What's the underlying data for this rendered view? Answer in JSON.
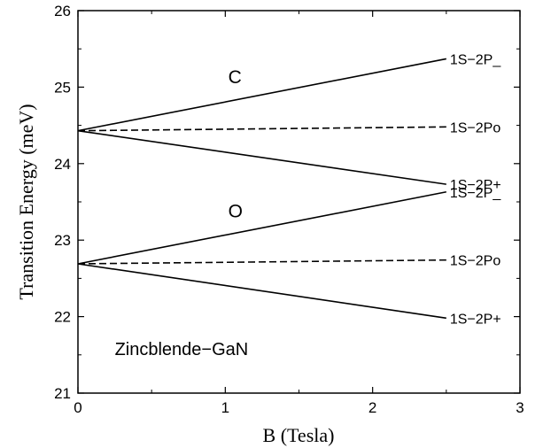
{
  "chart_data": {
    "type": "line",
    "xlabel": "B (Tesla)",
    "ylabel": "Transition Energy (meV)",
    "xlim": [
      0,
      3
    ],
    "ylim": [
      21,
      26
    ],
    "xticks": [
      "0",
      "1",
      "2",
      "3"
    ],
    "yticks": [
      "21",
      "22",
      "23",
      "24",
      "25",
      "26"
    ],
    "grid": false,
    "series": [
      {
        "name": "1S−2P_",
        "group": "C",
        "style": "solid",
        "x": [
          0,
          2.5
        ],
        "y": [
          24.43,
          25.37
        ]
      },
      {
        "name": "1S−2Po",
        "group": "C",
        "style": "dashed",
        "x": [
          0,
          2.5
        ],
        "y": [
          24.43,
          24.48
        ]
      },
      {
        "name": "1S−2P+",
        "group": "C",
        "style": "solid",
        "x": [
          0,
          2.5
        ],
        "y": [
          24.43,
          23.73
        ]
      },
      {
        "name": "1S−2P_",
        "group": "O",
        "style": "solid",
        "x": [
          0,
          2.5
        ],
        "y": [
          22.69,
          23.63
        ]
      },
      {
        "name": "1S−2Po",
        "group": "O",
        "style": "dashed",
        "x": [
          0,
          2.5
        ],
        "y": [
          22.69,
          22.74
        ]
      },
      {
        "name": "1S−2P+",
        "group": "O",
        "style": "solid",
        "x": [
          0,
          2.5
        ],
        "y": [
          22.69,
          21.98
        ]
      }
    ],
    "annotations": [
      {
        "text": "C",
        "x": 1.02,
        "y": 25.05
      },
      {
        "text": "O",
        "x": 1.02,
        "y": 23.3
      },
      {
        "text": "Zincblende−GaN",
        "x": 0.25,
        "y": 21.5
      }
    ]
  }
}
